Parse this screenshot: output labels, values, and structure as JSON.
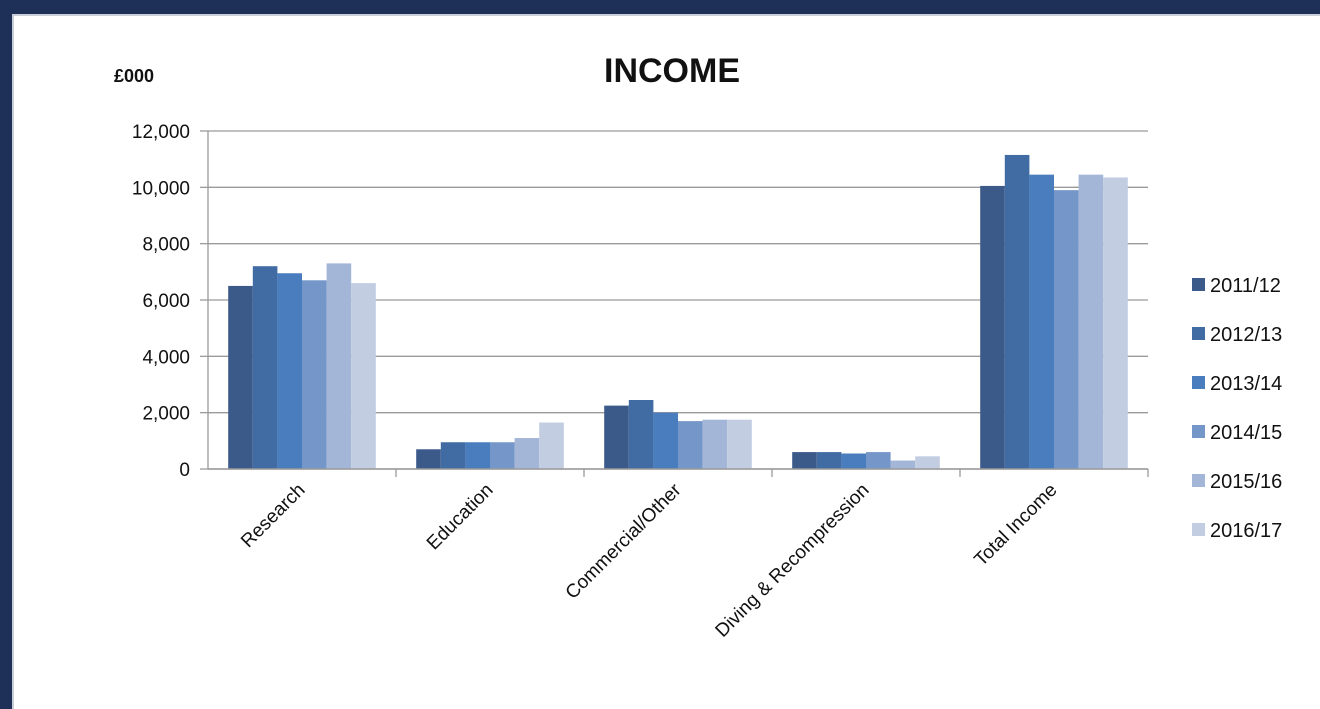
{
  "chart_data": {
    "type": "bar",
    "title": "INCOME",
    "unit_label": "£000",
    "xlabel": "",
    "ylabel": "",
    "ylim": [
      0,
      12000
    ],
    "yticks": [
      0,
      2000,
      4000,
      6000,
      8000,
      10000,
      12000
    ],
    "ytick_labels": [
      "0",
      "2,000",
      "4,000",
      "6,000",
      "8,000",
      "10,000",
      "12,000"
    ],
    "grid": true,
    "legend_position": "right",
    "categories": [
      "Research",
      "Education",
      "Commercial/Other",
      "Diving & Recompression",
      "Total Income"
    ],
    "series": [
      {
        "name": "2011/12",
        "color": "#3b5a89",
        "values": [
          6500,
          700,
          2250,
          600,
          10050
        ]
      },
      {
        "name": "2012/13",
        "color": "#416ba3",
        "values": [
          7200,
          950,
          2450,
          600,
          11150
        ]
      },
      {
        "name": "2013/14",
        "color": "#4a7dbd",
        "values": [
          6950,
          950,
          2000,
          550,
          10450
        ]
      },
      {
        "name": "2014/15",
        "color": "#7596c8",
        "values": [
          6700,
          950,
          1700,
          600,
          9900
        ]
      },
      {
        "name": "2015/16",
        "color": "#a3b6d8",
        "values": [
          7300,
          1100,
          1750,
          300,
          10450
        ]
      },
      {
        "name": "2016/17",
        "color": "#c2cde2",
        "values": [
          6600,
          1650,
          1750,
          450,
          10350
        ]
      }
    ]
  }
}
